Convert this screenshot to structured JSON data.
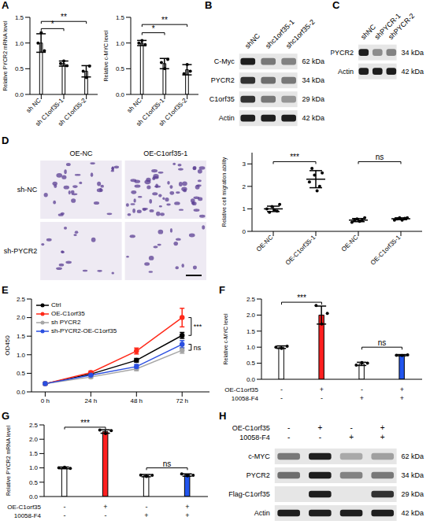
{
  "chart_data": [
    {
      "panel": "A",
      "type": "bar",
      "y_label": "Relative PYCR2 mRNA level",
      "categories": [
        "sh NC",
        "sh C1orf35-1",
        "sh C1orf35-2"
      ],
      "values": [
        1.0,
        0.6,
        0.45
      ],
      "errors": [
        0.18,
        0.05,
        0.11
      ],
      "points": [
        [
          1.0,
          1.2,
          0.85
        ],
        [
          0.6,
          0.65,
          0.56
        ],
        [
          0.45,
          0.33,
          0.55
        ]
      ],
      "colors": [
        "#ffffff",
        "#ffffff",
        "#ffffff"
      ],
      "marker": "circle",
      "ylim": [
        0,
        1.5
      ],
      "yticks": [
        {
          "value": 0,
          "label": "0.0"
        },
        0.5,
        {
          "value": 1,
          "label": "1.0"
        },
        1.5
      ],
      "annotations": [
        {
          "text": "*",
          "from": 0,
          "to": 1,
          "y": 1.28
        },
        {
          "text": "**",
          "from": 0,
          "to": 2,
          "y": 1.42
        }
      ]
    },
    {
      "type": "bar",
      "y_label": "Relative c-MYC level",
      "categories": [
        "sh NC",
        "sh C1orf35-1",
        "sh C1orf35-2"
      ],
      "values": [
        1.0,
        0.6,
        0.48
      ],
      "errors": [
        0.05,
        0.1,
        0.1
      ],
      "points": [
        [
          1.0,
          1.05,
          0.97
        ],
        [
          0.62,
          0.5,
          0.68
        ],
        [
          0.4,
          0.58,
          0.45
        ]
      ],
      "colors": [
        "#ffffff",
        "#ffffff",
        "#ffffff"
      ],
      "marker": "circle",
      "ylim": [
        0,
        1.5
      ],
      "yticks": [
        {
          "value": 0,
          "label": "0.0"
        },
        0.5,
        {
          "value": 1,
          "label": "1.0"
        },
        1.5
      ],
      "annotations": [
        {
          "text": "*",
          "from": 0,
          "to": 1,
          "y": 1.2
        },
        {
          "text": "**",
          "from": 0,
          "to": 2,
          "y": 1.36
        }
      ]
    },
    {
      "panel": "B",
      "type": "blot",
      "lanes": [
        "shNC",
        "shc1orf35-1",
        "shc1orf35-2"
      ],
      "rows": [
        {
          "label": "C-Myc",
          "size": "62 kDa",
          "bands": [
            1,
            0.55,
            0.5
          ]
        },
        {
          "label": "PYCR2",
          "size": "34 kDa",
          "bands": [
            0.9,
            0.6,
            0.55
          ]
        },
        {
          "label": "C1orf35",
          "size": "29 kDa",
          "bands": [
            0.9,
            0.55,
            0.4
          ]
        },
        {
          "label": "Actin",
          "size": "42 kDa",
          "bands": [
            1,
            1,
            1
          ]
        }
      ]
    },
    {
      "panel": "C",
      "type": "blot",
      "lanes": [
        "shNC",
        "shPYCR-1",
        "shPYCR-2"
      ],
      "rows": [
        {
          "label": "PYCR2",
          "size": "34 kDa",
          "bands": [
            1,
            0.45,
            0.5
          ]
        },
        {
          "label": "Actin",
          "size": "42 kDa",
          "bands": [
            1,
            1,
            1
          ]
        }
      ]
    },
    {
      "panel": "D",
      "type": "micrographs",
      "columns": [
        "OE-NC",
        "OE-C1orf35-1"
      ],
      "rows": [
        "sh-NC",
        "sh-PYCR2"
      ]
    },
    {
      "type": "scatter",
      "y_label": "Relative cell migration ability",
      "categories": [
        "OE-NC",
        "OE-C1orf35-1",
        "OE-NC",
        "OE-C1orf35-1"
      ],
      "groups": [
        {
          "name": "sh-NC",
          "from": 0,
          "to": 1
        },
        {
          "name": "sh-PYCR2",
          "from": 2,
          "to": 3
        }
      ],
      "points": [
        [
          1.0,
          0.85,
          1.1,
          0.95,
          0.9,
          1.2
        ],
        [
          2.2,
          2.8,
          2.5,
          1.8,
          2.0,
          2.6
        ],
        [
          0.4,
          0.5,
          0.55,
          0.45,
          0.5,
          0.6
        ],
        [
          0.5,
          0.55,
          0.6,
          0.5,
          0.58,
          0.6
        ]
      ],
      "means": [
        1.0,
        2.32,
        0.5,
        0.56
      ],
      "errors": [
        0.12,
        0.38,
        0.07,
        0.04
      ],
      "color": "#000000",
      "marker": "circle",
      "ylim": [
        0,
        3.5
      ],
      "yticks": [
        0,
        1,
        2,
        3
      ],
      "annotations": [
        {
          "text": "***",
          "from": 0,
          "to": 1,
          "y": 3.1
        },
        {
          "text": "ns",
          "from": 2,
          "to": 3,
          "y": 3.1
        }
      ]
    },
    {
      "panel": "E",
      "type": "line",
      "y_label": "OD450",
      "categories": [
        "0 h",
        "24 h",
        "48 h",
        "72 h"
      ],
      "series": [
        {
          "name": "Ctrl",
          "color": "#000000",
          "values": [
            0.22,
            0.48,
            0.85,
            1.52
          ],
          "errors": [
            0.02,
            0.03,
            0.05,
            0.08
          ]
        },
        {
          "name": "OE-C1orf35",
          "color": "#ff2a1a",
          "values": [
            0.22,
            0.52,
            1.1,
            2.0
          ],
          "errors": [
            0.02,
            0.04,
            0.08,
            0.25
          ]
        },
        {
          "name": "sh PYCR2",
          "color": "#a6a6a6",
          "values": [
            0.22,
            0.4,
            0.62,
            1.12
          ],
          "errors": [
            0.02,
            0.03,
            0.05,
            0.08
          ]
        },
        {
          "name": "sh-PYCR2-OE-C1orf35",
          "color": "#2b4fe0",
          "values": [
            0.22,
            0.45,
            0.68,
            1.28
          ],
          "errors": [
            0.02,
            0.03,
            0.06,
            0.1
          ]
        }
      ],
      "marker": "circle",
      "legend": "top-left",
      "ylim": [
        0,
        2.5
      ],
      "yticks": [
        {
          "value": 0,
          "label": "0.0"
        },
        0.5,
        {
          "value": 1,
          "label": "1.0"
        },
        1.5,
        {
          "value": 2,
          "label": "2.0"
        },
        2.5
      ],
      "annotations": [
        {
          "text": "***",
          "between": [
            "OE-C1orf35",
            "Ctrl"
          ],
          "at": "72 h"
        },
        {
          "text": "ns",
          "between": [
            "sh-PYCR2-OE-C1orf35",
            "sh PYCR2"
          ],
          "at": "72 h"
        }
      ]
    },
    {
      "panel": "F",
      "type": "bar",
      "y_label": "Relative c-MYC level",
      "conditions": [
        {
          "name": "OE-C1orf35",
          "values": [
            "-",
            "+",
            "-",
            "+"
          ]
        },
        {
          "name": "10058-F4",
          "values": [
            "-",
            "-",
            "+",
            "+"
          ]
        }
      ],
      "values": [
        1.0,
        2.0,
        0.48,
        0.75
      ],
      "errors": [
        0.04,
        0.28,
        0.05,
        0.02
      ],
      "points": [
        [
          1.0,
          0.96,
          1.03
        ],
        [
          2.3,
          1.72,
          2.05
        ],
        [
          0.44,
          0.52,
          0.5
        ],
        [
          0.75,
          0.74,
          0.76
        ]
      ],
      "colors": [
        "#ffffff",
        "#ff2020",
        "#ffffff",
        "#2255ee"
      ],
      "marker": "circle",
      "ylim": [
        0,
        2.5
      ],
      "yticks": [
        {
          "value": 0,
          "label": "0.0"
        },
        0.5,
        {
          "value": 1,
          "label": "1.0"
        },
        1.5,
        {
          "value": 2,
          "label": "2.0"
        },
        2.5
      ],
      "annotations": [
        {
          "text": "***",
          "from": 0,
          "to": 1,
          "y": 2.4
        },
        {
          "text": "ns",
          "from": 2,
          "to": 3,
          "y": 1.0
        }
      ]
    },
    {
      "panel": "G",
      "type": "bar",
      "y_label": "Relative PYCR2 mRNA level",
      "conditions": [
        {
          "name": "OE-C1orf35",
          "values": [
            "-",
            "+",
            "-",
            "+"
          ]
        },
        {
          "name": "10058-F4",
          "values": [
            "-",
            "-",
            "+",
            "+"
          ]
        }
      ],
      "values": [
        1.0,
        2.27,
        0.73,
        0.75
      ],
      "errors": [
        0.03,
        0.06,
        0.04,
        0.04
      ],
      "points": [
        [
          1.0,
          1.02,
          0.98
        ],
        [
          2.32,
          2.2,
          2.3
        ],
        [
          0.75,
          0.7,
          0.74
        ],
        [
          0.79,
          0.72,
          0.74
        ]
      ],
      "colors": [
        "#ffffff",
        "#ff2020",
        "#ffffff",
        "#2255ee"
      ],
      "marker": "circle",
      "ylim": [
        0,
        2.5
      ],
      "yticks": [
        {
          "value": 0,
          "label": "0.0"
        },
        0.5,
        {
          "value": 1,
          "label": "1.0"
        },
        1.5,
        {
          "value": 2,
          "label": "2.0"
        },
        2.5
      ],
      "annotations": [
        {
          "text": "***",
          "from": 0,
          "to": 1,
          "y": 2.42
        },
        {
          "text": "ns",
          "from": 2,
          "to": 3,
          "y": 1.0
        }
      ]
    },
    {
      "panel": "H",
      "type": "blot",
      "conditions": [
        {
          "name": "OE-C1orf35",
          "values": [
            "-",
            "+",
            "-",
            "+"
          ]
        },
        {
          "name": "10058-F4",
          "values": [
            "-",
            "-",
            "+",
            "+"
          ]
        }
      ],
      "rows": [
        {
          "label": "c-MYC",
          "size": "62 kDa",
          "bands": [
            0.55,
            1,
            0.3,
            0.35
          ]
        },
        {
          "label": "PYCR2",
          "size": "34 kDa",
          "bands": [
            0.6,
            1,
            0.5,
            0.55
          ]
        },
        {
          "label": "Flag-C1orf35",
          "size": "29 kDa",
          "bands": [
            0,
            1,
            0,
            0.9
          ]
        },
        {
          "label": "Actin",
          "size": "42 kDa",
          "bands": [
            1,
            1,
            1,
            1
          ]
        }
      ]
    }
  ]
}
